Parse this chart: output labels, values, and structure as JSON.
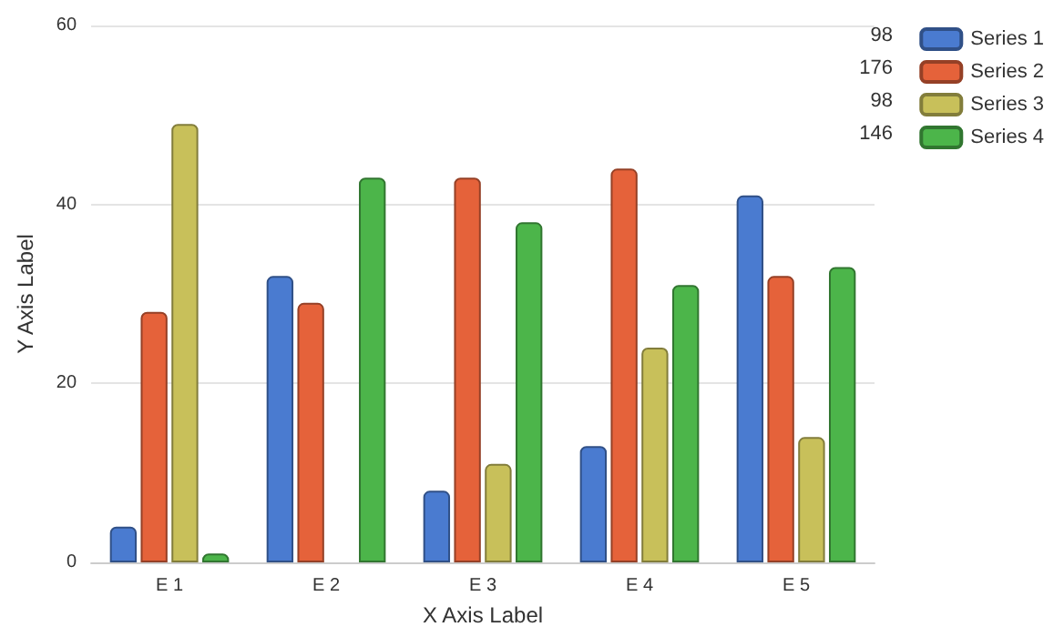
{
  "chart_data": {
    "type": "bar",
    "xlabel": "X Axis Label",
    "ylabel": "Y Axis Label",
    "categories": [
      "E 1",
      "E 2",
      "E 3",
      "E 4",
      "E 5"
    ],
    "series": [
      {
        "name": "Series 1",
        "color": "#4a7bd0",
        "values": [
          4,
          32,
          8,
          13,
          41
        ]
      },
      {
        "name": "Series 2",
        "color": "#e5623a",
        "values": [
          28,
          29,
          43,
          44,
          32
        ]
      },
      {
        "name": "Series 3",
        "color": "#c8c05a",
        "values": [
          49,
          null,
          11,
          24,
          14
        ]
      },
      {
        "name": "Series 4",
        "color": "#4cb54a",
        "values": [
          1,
          43,
          38,
          31,
          33
        ]
      }
    ],
    "annotations": [
      "98",
      "176",
      "98",
      "146"
    ],
    "ylim": [
      0,
      60
    ],
    "yticks": [
      0,
      20,
      40,
      60
    ],
    "grid": "y",
    "legend": "top right"
  }
}
